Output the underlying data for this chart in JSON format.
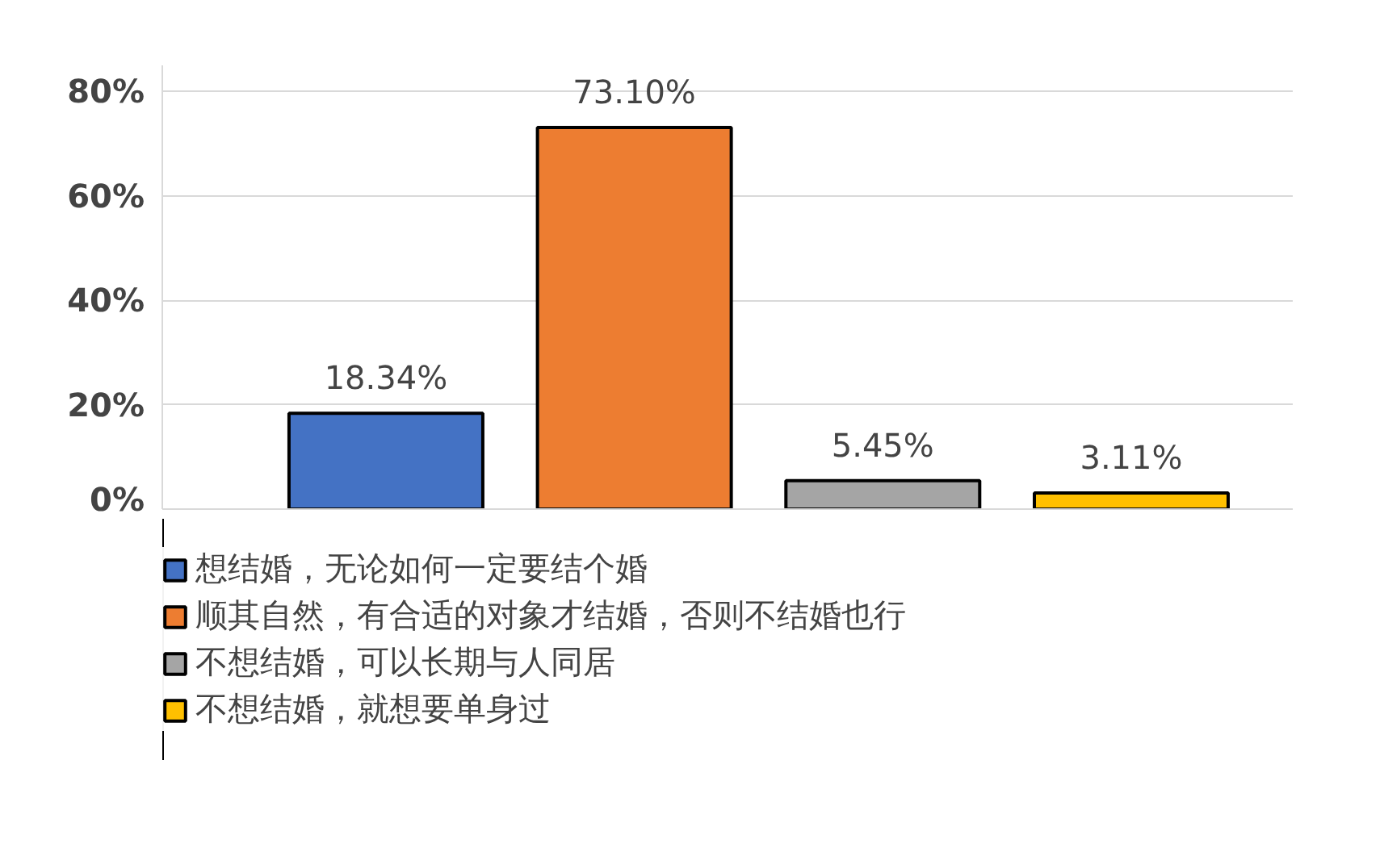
{
  "chart_data": {
    "type": "bar",
    "categories": [
      null,
      null,
      null,
      null
    ],
    "series": [
      {
        "name": "想结婚，无论如何一定要结个婚",
        "color": "#4472c4",
        "values": [
          18.34,
          null,
          null,
          null
        ],
        "value_labels": [
          "18.34%",
          null,
          null,
          null
        ]
      },
      {
        "name": "顺其自然，有合适的对象才结婚，否则不结婚也行",
        "color": "#ed7d31",
        "values": [
          null,
          73.1,
          null,
          null
        ],
        "value_labels": [
          null,
          "73.10%",
          null,
          null
        ]
      },
      {
        "name": "不想结婚，可以长期与人同居",
        "color": "#a5a5a5",
        "values": [
          null,
          null,
          5.45,
          null
        ],
        "value_labels": [
          null,
          null,
          "5.45%",
          null
        ]
      },
      {
        "name": "不想结婚，就想要单身过",
        "color": "#ffc000",
        "values": [
          null,
          null,
          null,
          3.11
        ],
        "value_labels": [
          null,
          null,
          null,
          "3.11%"
        ]
      }
    ],
    "ylim": [
      0,
      85
    ],
    "yticks": [
      {
        "value": 0,
        "label": "0%"
      },
      {
        "value": 20,
        "label": "20%"
      },
      {
        "value": 40,
        "label": "40%"
      },
      {
        "value": 60,
        "label": "60%"
      },
      {
        "value": 80,
        "label": "80%"
      }
    ],
    "grid": "y",
    "legend": "bottom"
  }
}
